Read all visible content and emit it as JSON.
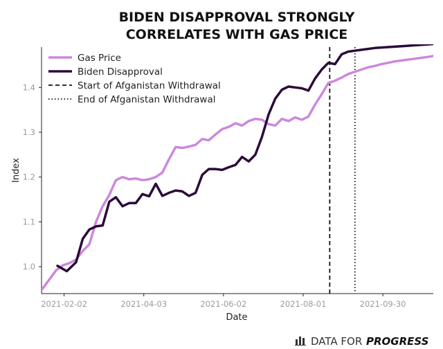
{
  "chart_data": {
    "type": "line",
    "title_lines": [
      "BIDEN DISAPPROVAL STRONGLY",
      "CORRELATES WITH GAS PRICE"
    ],
    "xlabel": "Date",
    "ylabel": "Index",
    "x_ticks": [
      "2021-02-02",
      "2021-04-03",
      "2021-06-02",
      "2021-08-01",
      "2021-09-30"
    ],
    "x_range_days": [
      -17,
      278
    ],
    "ylim": [
      0.94,
      1.49
    ],
    "y_ticks": [
      1.0,
      1.1,
      1.2,
      1.3,
      1.4
    ],
    "y_tick_labels": [
      "1.0",
      "1.1",
      "1.2",
      "1.3",
      "1.4"
    ],
    "x_origin_date": "2021-02-02",
    "series": [
      {
        "name": "Gas Price",
        "color": "#cc88dd",
        "style": "solid",
        "x_days": [
          -17,
          -11,
          -6,
          -1,
          4,
          9,
          14,
          19,
          24,
          29,
          34,
          39,
          44,
          49,
          54,
          59,
          64,
          69,
          74,
          79,
          84,
          89,
          94,
          99,
          104,
          109,
          114,
          119,
          124,
          129,
          134,
          139,
          144,
          149,
          154,
          159,
          164,
          169,
          174,
          179,
          184,
          189,
          194,
          199,
          204,
          209,
          214,
          219,
          224,
          229,
          234,
          239,
          244,
          249,
          254,
          259,
          264,
          269,
          274,
          278
        ],
        "values": [
          0.948,
          0.972,
          0.992,
          1.003,
          1.008,
          1.016,
          1.035,
          1.05,
          1.1,
          1.135,
          1.16,
          1.193,
          1.2,
          1.195,
          1.197,
          1.193,
          1.195,
          1.2,
          1.21,
          1.24,
          1.267,
          1.265,
          1.268,
          1.272,
          1.285,
          1.282,
          1.295,
          1.307,
          1.312,
          1.32,
          1.315,
          1.325,
          1.33,
          1.328,
          1.318,
          1.315,
          1.33,
          1.325,
          1.333,
          1.328,
          1.335,
          1.362,
          1.385,
          1.41,
          1.415,
          1.422,
          1.43,
          1.435,
          1.44,
          1.445,
          1.448,
          1.452,
          1.455,
          1.458,
          1.46,
          1.462,
          1.464,
          1.466,
          1.468,
          1.47
        ]
      },
      {
        "name": "Biden Disapproval",
        "color": "#2a0a3a",
        "style": "solid",
        "x_days": [
          -5,
          2,
          9,
          14,
          19,
          24,
          29,
          34,
          39,
          44,
          49,
          54,
          59,
          64,
          69,
          74,
          79,
          84,
          89,
          94,
          99,
          104,
          109,
          114,
          119,
          124,
          129,
          134,
          139,
          144,
          149,
          154,
          159,
          164,
          169,
          174,
          179,
          184,
          189,
          194,
          199,
          204,
          209,
          214,
          219,
          224,
          229,
          234,
          239,
          244,
          249,
          254,
          259,
          264,
          269,
          274,
          278
        ],
        "values": [
          1.002,
          0.99,
          1.01,
          1.062,
          1.083,
          1.09,
          1.092,
          1.145,
          1.155,
          1.135,
          1.142,
          1.142,
          1.162,
          1.157,
          1.185,
          1.158,
          1.165,
          1.17,
          1.168,
          1.158,
          1.165,
          1.205,
          1.218,
          1.218,
          1.216,
          1.222,
          1.227,
          1.245,
          1.235,
          1.25,
          1.29,
          1.34,
          1.375,
          1.395,
          1.402,
          1.4,
          1.398,
          1.393,
          1.42,
          1.44,
          1.455,
          1.452,
          1.474,
          1.48,
          1.482,
          1.484,
          1.486,
          1.488,
          1.489,
          1.49,
          1.491,
          1.492,
          1.493,
          1.494,
          1.495,
          1.496,
          1.497
        ]
      }
    ],
    "vlines": [
      {
        "name": "Start of Afganistan Withdrawal",
        "x_day": 200,
        "style": "dashed",
        "color": "#111111"
      },
      {
        "name": "End of Afganistan Withdrawal",
        "x_day": 219,
        "style": "dotted",
        "color": "#111111"
      }
    ],
    "legend": {
      "placement": "top-left",
      "entries": [
        {
          "label": "Gas Price",
          "style": "solid-light",
          "color": "#cc88dd"
        },
        {
          "label": "Biden Disapproval",
          "style": "solid-dark",
          "color": "#2a0a3a"
        },
        {
          "label": "Start of Afganistan Withdrawal",
          "style": "dashed",
          "color": "#111111"
        },
        {
          "label": "End of Afganistan Withdrawal",
          "style": "dotted",
          "color": "#111111"
        }
      ]
    }
  },
  "brand": {
    "part1": "DATA FOR",
    "part2": "PROGRESS",
    "icon": "bar-chart-icon"
  }
}
